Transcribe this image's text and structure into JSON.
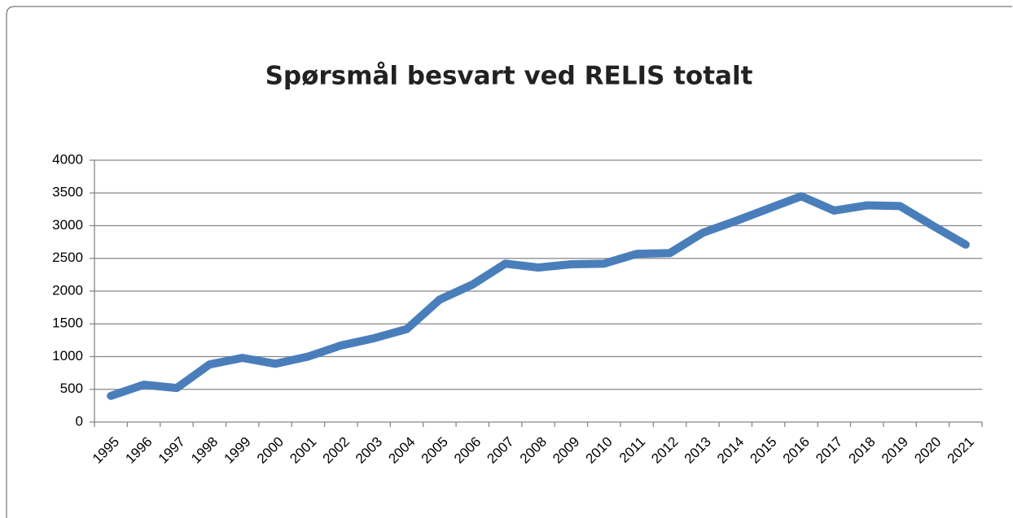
{
  "chart_data": {
    "type": "line",
    "title": "Spørsmål besvart ved RELIS totalt",
    "categories": [
      "1995",
      "1996",
      "1997",
      "1998",
      "1999",
      "2000",
      "2001",
      "2002",
      "2003",
      "2004",
      "2005",
      "2006",
      "2007",
      "2008",
      "2009",
      "2010",
      "2011",
      "2012",
      "2013",
      "2014",
      "2015",
      "2016",
      "2017",
      "2018",
      "2019",
      "2020",
      "2021"
    ],
    "series": [
      {
        "name": "Spørsmål besvart",
        "color": "#4a7ebb",
        "values": [
          400,
          570,
          520,
          880,
          980,
          890,
          1000,
          1170,
          1280,
          1420,
          1870,
          2100,
          2420,
          2360,
          2410,
          2420,
          2570,
          2580,
          2890,
          3070,
          3260,
          3450,
          3230,
          3310,
          3300,
          3000,
          2710
        ]
      }
    ],
    "ylim": [
      0,
      4000
    ],
    "yticks": [
      0,
      500,
      1000,
      1500,
      2000,
      2500,
      3000,
      3500,
      4000
    ],
    "grid": true
  }
}
